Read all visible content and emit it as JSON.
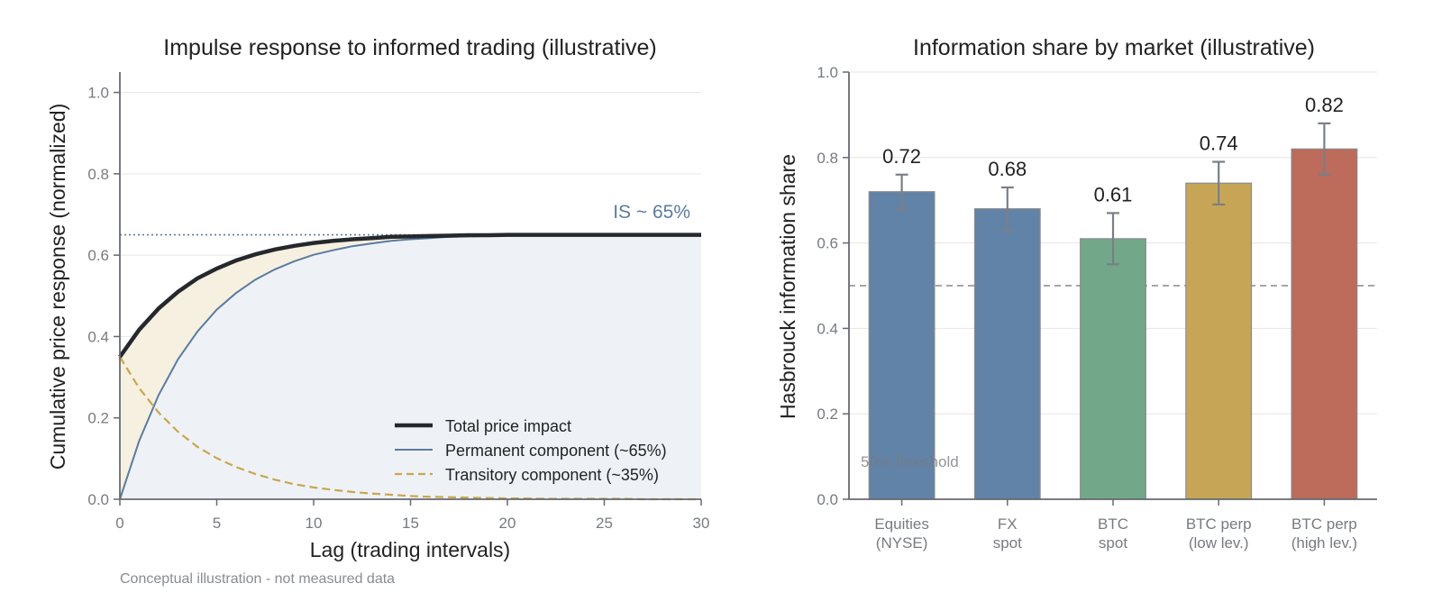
{
  "chart_data": [
    {
      "type": "line",
      "title": "Impulse response to informed trading (illustrative)",
      "xlabel": "Lag (trading intervals)",
      "ylabel": "Cumulative price response (normalized)",
      "xlim": [
        0,
        30
      ],
      "ylim": [
        0,
        1.05
      ],
      "x_ticks": [
        "0",
        "5",
        "10",
        "15",
        "20",
        "25",
        "30"
      ],
      "y_ticks": [
        "0.0",
        "0.2",
        "0.4",
        "0.6",
        "0.8",
        "1.0"
      ],
      "grid": "horizontal",
      "legend_position": "lower-right",
      "x": [
        0,
        1,
        2,
        3,
        4,
        5,
        6,
        7,
        8,
        9,
        10,
        11,
        12,
        13,
        14,
        15,
        16,
        17,
        18,
        19,
        20,
        21,
        22,
        23,
        24,
        25,
        26,
        27,
        28,
        29,
        30
      ],
      "series": [
        {
          "name": "Total price impact",
          "color": "#25282c",
          "style": "solid-thick",
          "values": [
            0.35,
            0.417,
            0.469,
            0.51,
            0.543,
            0.567,
            0.587,
            0.602,
            0.614,
            0.623,
            0.63,
            0.635,
            0.639,
            0.642,
            0.645,
            0.646,
            0.647,
            0.648,
            0.649,
            0.649,
            0.65,
            0.65,
            0.65,
            0.65,
            0.65,
            0.65,
            0.65,
            0.65,
            0.65,
            0.65,
            0.65
          ]
        },
        {
          "name": "Permanent component (~65%)",
          "color": "#5b7ba0",
          "style": "solid",
          "values": [
            0.0,
            0.144,
            0.256,
            0.344,
            0.412,
            0.466,
            0.507,
            0.54,
            0.565,
            0.585,
            0.601,
            0.612,
            0.622,
            0.629,
            0.635,
            0.639,
            0.642,
            0.645,
            0.646,
            0.647,
            0.648,
            0.649,
            0.649,
            0.65,
            0.65,
            0.65,
            0.65,
            0.65,
            0.65,
            0.65,
            0.65
          ]
        },
        {
          "name": "Transitory component (~35%)",
          "color": "#c9a64b",
          "style": "dashed",
          "values": [
            0.35,
            0.273,
            0.213,
            0.166,
            0.129,
            0.101,
            0.079,
            0.062,
            0.048,
            0.037,
            0.029,
            0.023,
            0.018,
            0.014,
            0.011,
            0.008,
            0.006,
            0.005,
            0.004,
            0.003,
            0.002,
            0.002,
            0.001,
            0.001,
            0.001,
            0.001,
            0.001,
            0.0,
            0.0,
            0.0,
            0.0
          ]
        }
      ],
      "reference_line": {
        "y": 0.65,
        "style": "dotted",
        "color": "#5b7ba0"
      },
      "annotation": "IS ~ 65%",
      "fill_colors": {
        "transitory_band": "#f6f0e0",
        "permanent_area": "#eef2f7"
      },
      "footnote": "Conceptual illustration - not measured data"
    },
    {
      "type": "bar",
      "title": "Information share by market (illustrative)",
      "xlabel": "",
      "ylabel": "Hasbrouck information share",
      "ylim": [
        0,
        1.0
      ],
      "y_ticks": [
        "0.0",
        "0.2",
        "0.4",
        "0.6",
        "0.8",
        "1.0"
      ],
      "grid": "horizontal",
      "categories": [
        [
          "Equities",
          "(NYSE)"
        ],
        [
          "FX",
          "spot"
        ],
        [
          "BTC",
          "spot"
        ],
        [
          "BTC perp",
          "(low lev.)"
        ],
        [
          "BTC perp",
          "(high lev.)"
        ]
      ],
      "values": [
        0.72,
        0.68,
        0.61,
        0.74,
        0.82
      ],
      "value_labels": [
        "0.72",
        "0.68",
        "0.61",
        "0.74",
        "0.82"
      ],
      "error_low": [
        0.68,
        0.63,
        0.55,
        0.69,
        0.76
      ],
      "error_high": [
        0.76,
        0.73,
        0.67,
        0.79,
        0.88
      ],
      "bar_colors": [
        "#6283a8",
        "#6283a8",
        "#72a889",
        "#c6a656",
        "#bd6b5b"
      ],
      "reference_line": {
        "y": 0.5,
        "style": "dashed",
        "color": "#888888"
      },
      "reference_label": "50% threshold"
    }
  ]
}
